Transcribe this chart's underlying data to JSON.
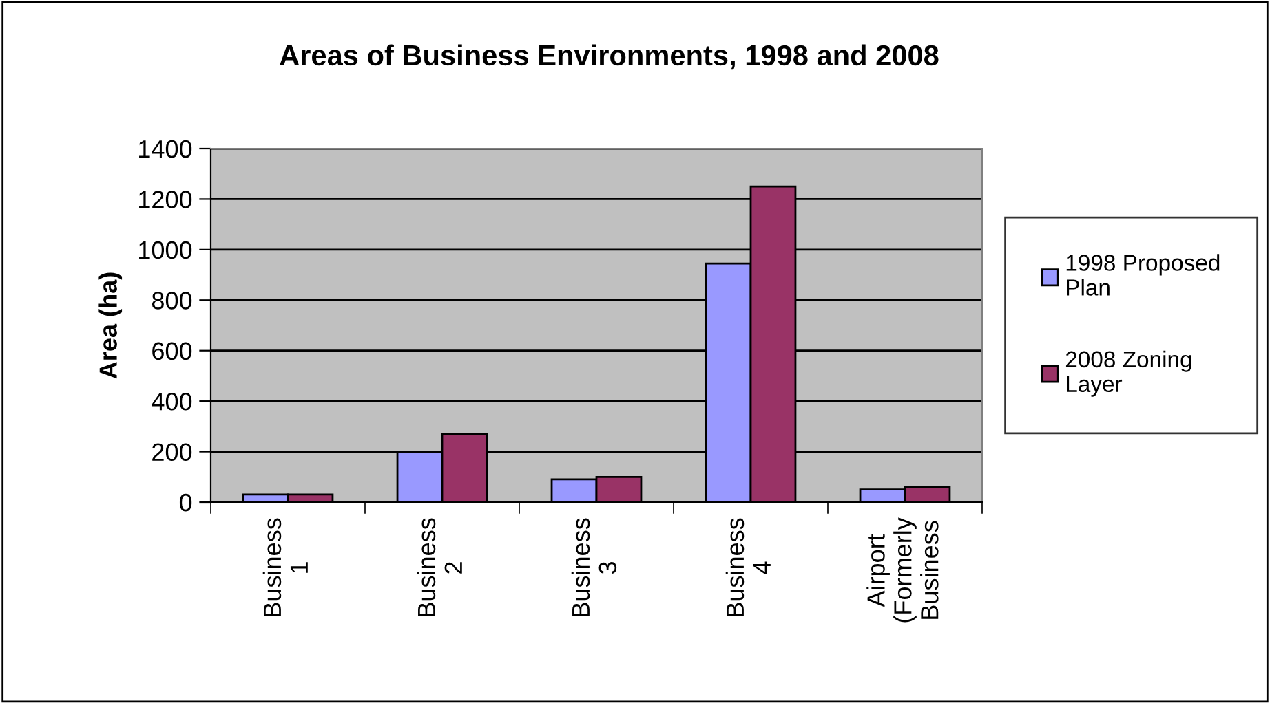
{
  "chart_data": {
    "type": "bar",
    "title": "Areas of Business Environments, 1998 and 2008",
    "ylabel": "Area (ha)",
    "categories": [
      "Business\n1",
      "Business\n2",
      "Business\n3",
      "Business\n4",
      "Airport\n(Formerly\nBusiness"
    ],
    "series": [
      {
        "name": "1998 Proposed\nPlan",
        "color": "#9999ff",
        "values": [
          30,
          200,
          90,
          945,
          50
        ]
      },
      {
        "name": "2008 Zoning\nLayer",
        "color": "#993366",
        "values": [
          30,
          270,
          100,
          1250,
          60
        ]
      }
    ],
    "ylim": [
      0,
      1400
    ],
    "yticks": [
      0,
      200,
      400,
      600,
      800,
      1000,
      1200,
      1400
    ],
    "grid": "y",
    "legend": "right"
  }
}
